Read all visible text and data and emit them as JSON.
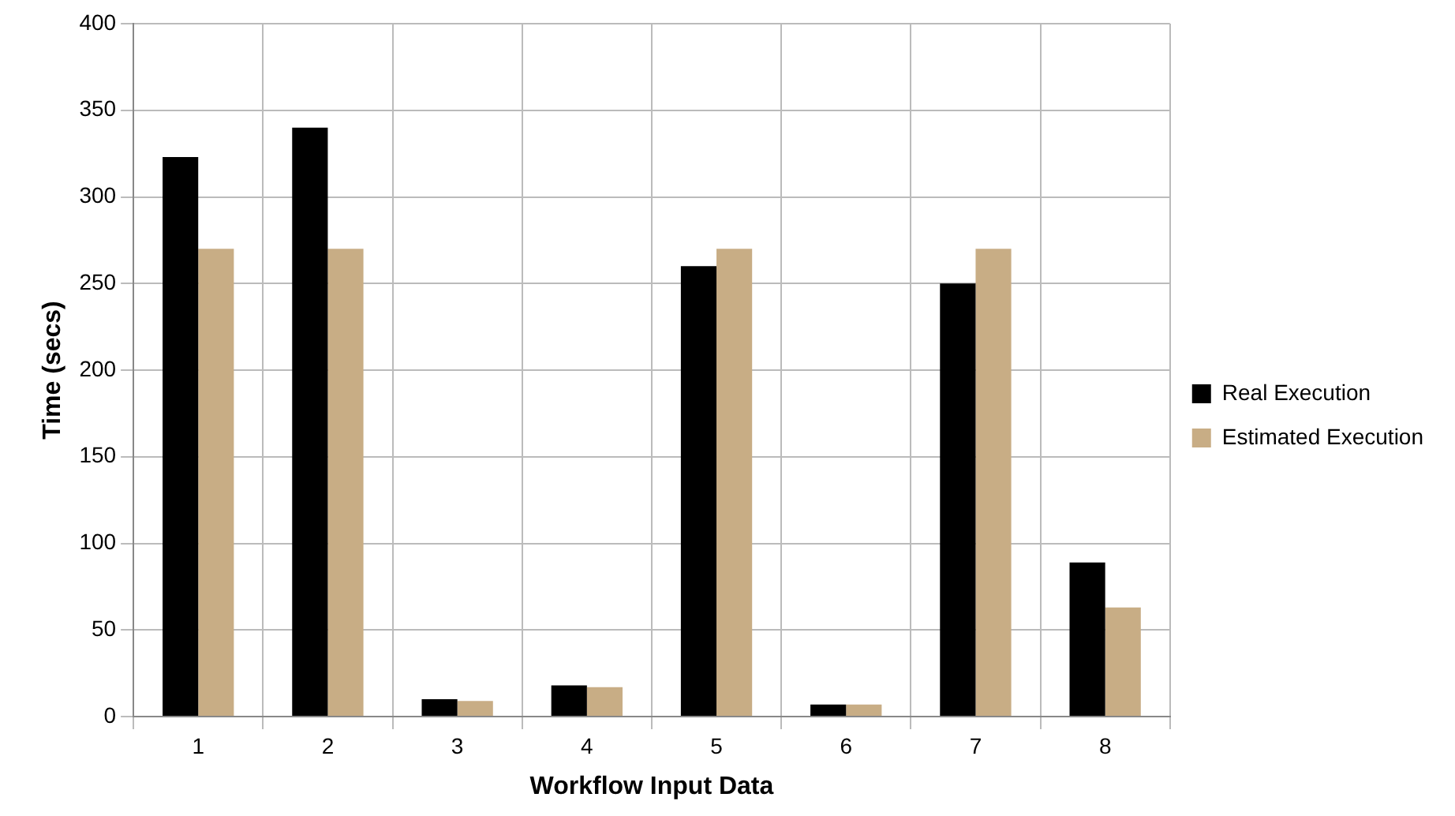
{
  "chart_data": {
    "type": "bar",
    "xlabel": "Workflow Input Data",
    "ylabel": "Time (secs)",
    "categories": [
      "1",
      "2",
      "3",
      "4",
      "5",
      "6",
      "7",
      "8"
    ],
    "series": [
      {
        "name": "Real Execution",
        "color": "#000000",
        "values": [
          323,
          340,
          10,
          18,
          260,
          7,
          250,
          89
        ]
      },
      {
        "name": "Estimated Execution",
        "color": "#c8ad85",
        "values": [
          270,
          270,
          9,
          17,
          270,
          7,
          270,
          63
        ]
      }
    ],
    "ylim": [
      0,
      400
    ],
    "yticks": [
      0,
      50,
      100,
      150,
      200,
      250,
      300,
      350,
      400
    ],
    "grid": true,
    "legend": "right"
  }
}
